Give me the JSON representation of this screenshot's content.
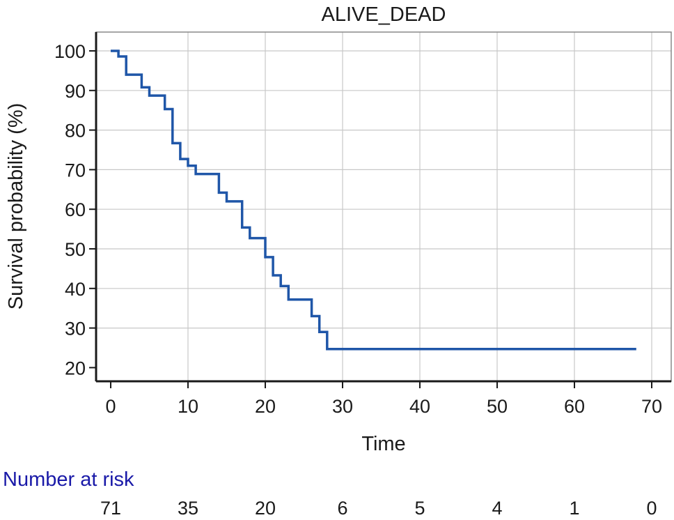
{
  "chart_data": {
    "type": "line",
    "title": "ALIVE_DEAD",
    "xlabel": "Time",
    "ylabel": "Survival probability (%)",
    "xlim": [
      0,
      70
    ],
    "ylim": [
      20,
      100
    ],
    "xticks": [
      0,
      10,
      20,
      30,
      40,
      50,
      60,
      70
    ],
    "yticks": [
      20,
      30,
      40,
      50,
      60,
      70,
      80,
      90,
      100
    ],
    "grid": true,
    "line_color": "#1f56a8",
    "series": [
      {
        "step": true,
        "x": [
          0,
          1,
          2,
          4,
          5,
          7,
          8,
          9,
          10,
          11,
          14,
          15,
          17,
          18,
          20,
          21,
          22,
          23,
          26,
          27,
          28,
          68
        ],
        "y": [
          100,
          98.6,
          94.0,
          90.8,
          88.7,
          85.3,
          76.7,
          72.7,
          71.0,
          68.9,
          64.2,
          62.0,
          55.4,
          52.7,
          47.9,
          43.3,
          40.6,
          37.2,
          33.0,
          29.0,
          24.7,
          24.7
        ]
      }
    ],
    "risk_table": {
      "label": "Number at risk",
      "label_color": "#1a1aa8",
      "times": [
        0,
        10,
        20,
        30,
        40,
        50,
        60,
        70
      ],
      "values": [
        "71",
        "35",
        "20",
        "6",
        "5",
        "4",
        "1",
        "0"
      ]
    }
  }
}
